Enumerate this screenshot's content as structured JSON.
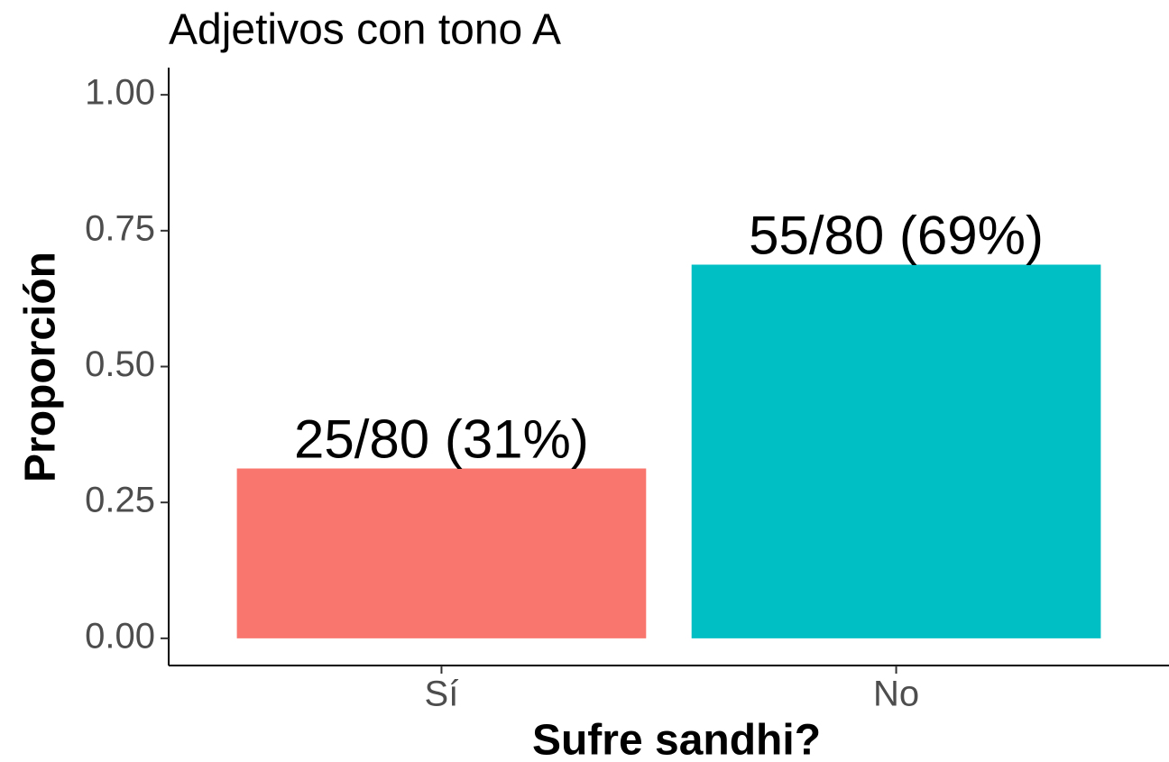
{
  "chart_data": {
    "type": "bar",
    "title": "Adjetivos con tono A",
    "x_label": "Sufre sandhi?",
    "y_label": "Proporción",
    "categories": [
      "Sí",
      "No"
    ],
    "values": [
      0.3125,
      0.6875
    ],
    "value_labels": [
      "25/80 (31%)",
      "55/80 (69%)"
    ],
    "colors": [
      "#f8766d",
      "#00bfc4"
    ],
    "ylim": [
      -0.05,
      1.05
    ],
    "yticks": [
      {
        "value": 0,
        "label": "0.00"
      },
      {
        "value": 0.25,
        "label": "0.25"
      },
      {
        "value": 0.5,
        "label": "0.50"
      },
      {
        "value": 0.75,
        "label": "0.75"
      },
      {
        "value": 1,
        "label": "1.00"
      }
    ],
    "grid": false
  }
}
